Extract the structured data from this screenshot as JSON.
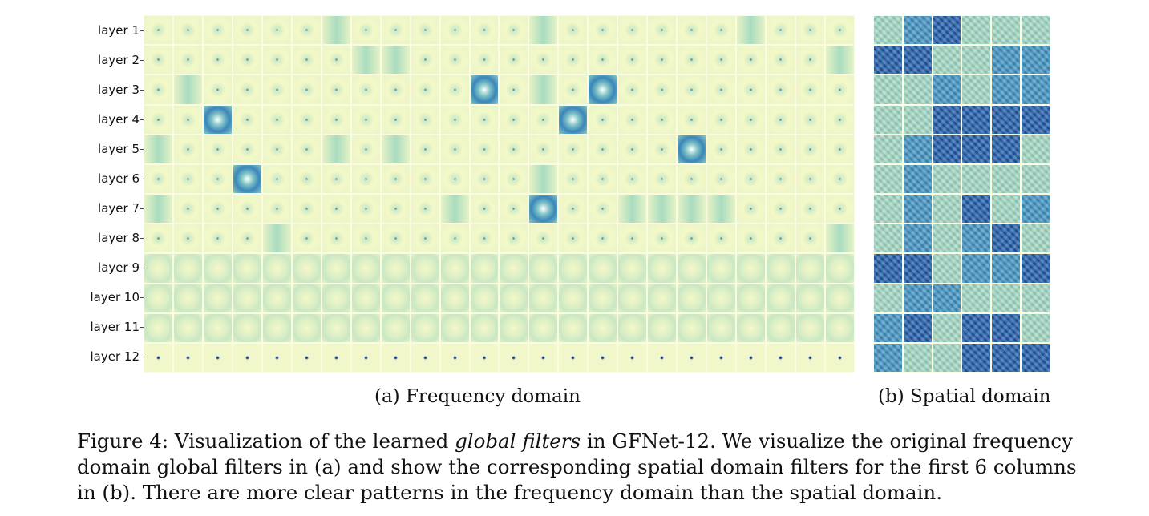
{
  "row_labels": [
    "layer 1",
    "layer 2",
    "layer 3",
    "layer 4",
    "layer 5",
    "layer 6",
    "layer 7",
    "layer 8",
    "layer 9",
    "layer 10",
    "layer 11",
    "layer 12"
  ],
  "subcaption_a": "(a) Frequency domain",
  "subcaption_b": "(b) Spatial domain",
  "caption": {
    "line1_pre": "Figure 4: Visualization of the learned ",
    "line1_em": "global filters",
    "line1_post": " in GFNet-12. We visualize the original frequency",
    "line2": "domain global filters in (a) and show the corresponding spatial domain filters for the first 6 columns",
    "line3": "in (b). There are more clear patterns in the frequency domain than the spatial domain."
  },
  "colors": {
    "pale": "#f3f8c8",
    "mid": "#b6e2c0",
    "deep": "#1e5ea8",
    "background": "#fbfbe2"
  }
}
